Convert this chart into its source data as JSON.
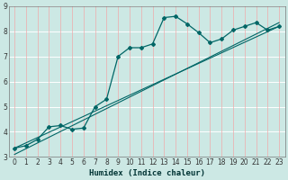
{
  "xlabel": "Humidex (Indice chaleur)",
  "ylabel": "",
  "background_color": "#cce8e4",
  "grid_color_h": "#ffffff",
  "grid_color_v": "#f0aaaa",
  "line_color": "#006666",
  "xlim": [
    -0.5,
    23.5
  ],
  "ylim": [
    3.0,
    9.0
  ],
  "xticks": [
    0,
    1,
    2,
    3,
    4,
    5,
    6,
    7,
    8,
    9,
    10,
    11,
    12,
    13,
    14,
    15,
    16,
    17,
    18,
    19,
    20,
    21,
    22,
    23
  ],
  "yticks": [
    3,
    4,
    5,
    6,
    7,
    8,
    9
  ],
  "curve1_x": [
    0,
    1,
    2,
    3,
    4,
    5,
    6,
    7,
    8,
    9,
    10,
    11,
    12,
    13,
    14,
    15,
    16,
    17,
    18,
    19,
    20,
    21,
    22,
    23
  ],
  "curve1_y": [
    3.35,
    3.45,
    3.7,
    4.2,
    4.25,
    4.1,
    4.15,
    5.0,
    5.3,
    7.0,
    7.35,
    7.35,
    7.5,
    8.55,
    8.6,
    8.3,
    7.95,
    7.55,
    7.7,
    8.05,
    8.2,
    8.35,
    8.05,
    8.2
  ],
  "line1_x": [
    0,
    23
  ],
  "line1_y": [
    3.35,
    8.2
  ],
  "line2_x": [
    0,
    23
  ],
  "line2_y": [
    3.1,
    8.35
  ]
}
